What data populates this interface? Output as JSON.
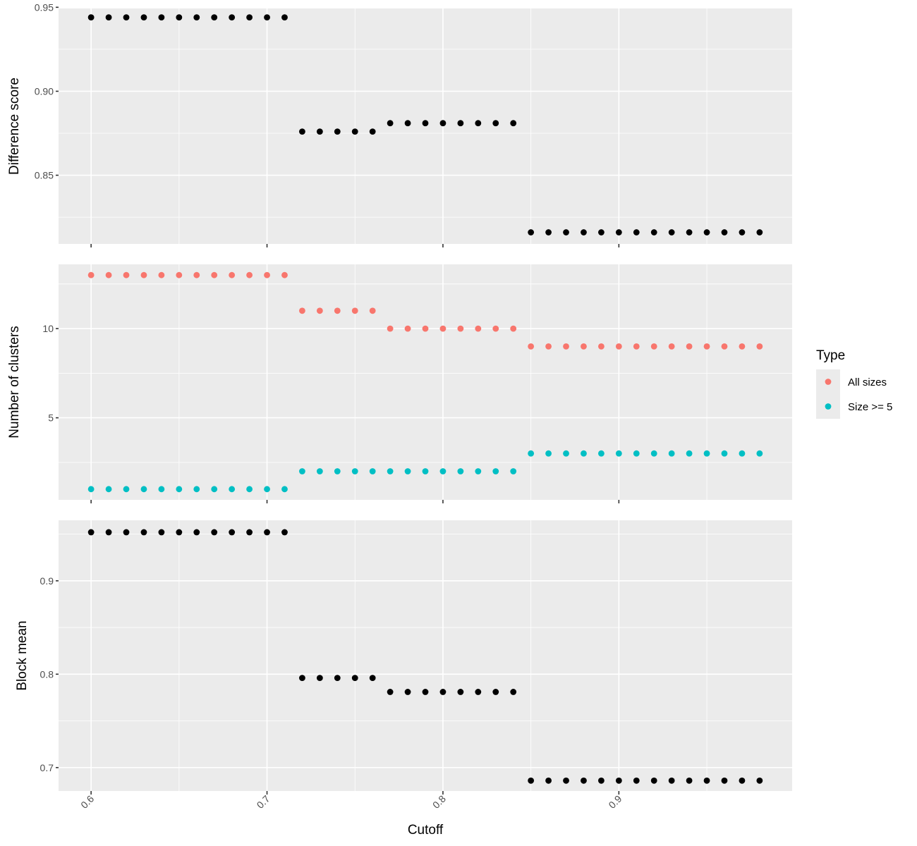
{
  "chart_data": {
    "type": "scatter",
    "xlabel": "Cutoff",
    "x_ticks": [
      0.6,
      0.7,
      0.8,
      0.9
    ],
    "x_tick_labels": [
      "0.6",
      "0.7",
      "0.8",
      "0.9"
    ],
    "xlim": [
      0.5815,
      0.9985
    ],
    "grid": true,
    "legend_position": "right",
    "legend": {
      "title": "Type",
      "entries": [
        {
          "label": "All sizes",
          "color": "#F8766D"
        },
        {
          "label": "Size >= 5",
          "color": "#00BFC4"
        }
      ]
    },
    "panels": [
      {
        "ylabel": "Difference score",
        "ylim": [
          0.8091,
          0.9493
        ],
        "y_ticks": [
          0.85,
          0.9,
          0.95
        ],
        "y_tick_labels": [
          "0.85",
          "0.90",
          "0.95"
        ],
        "series": [
          {
            "color": "#000000",
            "x": [
              0.6,
              0.61,
              0.62,
              0.63,
              0.64,
              0.65,
              0.66,
              0.67,
              0.68,
              0.69,
              0.7,
              0.71,
              0.72,
              0.73,
              0.74,
              0.75,
              0.76,
              0.77,
              0.78,
              0.79,
              0.8,
              0.81,
              0.82,
              0.83,
              0.84,
              0.85,
              0.86,
              0.87,
              0.88,
              0.89,
              0.9,
              0.91,
              0.92,
              0.93,
              0.94,
              0.95,
              0.96,
              0.97,
              0.98
            ],
            "y": [
              0.944,
              0.944,
              0.944,
              0.944,
              0.944,
              0.944,
              0.944,
              0.944,
              0.944,
              0.944,
              0.944,
              0.944,
              0.876,
              0.876,
              0.876,
              0.876,
              0.876,
              0.881,
              0.881,
              0.881,
              0.881,
              0.881,
              0.881,
              0.881,
              0.881,
              0.816,
              0.816,
              0.816,
              0.816,
              0.816,
              0.816,
              0.816,
              0.816,
              0.816,
              0.816,
              0.816,
              0.816,
              0.816,
              0.816
            ]
          }
        ]
      },
      {
        "ylabel": "Number of clusters",
        "ylim": [
          0.4,
          13.6
        ],
        "y_ticks": [
          5,
          10
        ],
        "y_tick_labels": [
          "5",
          "10"
        ],
        "series": [
          {
            "name": "All sizes",
            "color": "#F8766D",
            "x": [
              0.6,
              0.61,
              0.62,
              0.63,
              0.64,
              0.65,
              0.66,
              0.67,
              0.68,
              0.69,
              0.7,
              0.71,
              0.72,
              0.73,
              0.74,
              0.75,
              0.76,
              0.77,
              0.78,
              0.79,
              0.8,
              0.81,
              0.82,
              0.83,
              0.84,
              0.85,
              0.86,
              0.87,
              0.88,
              0.89,
              0.9,
              0.91,
              0.92,
              0.93,
              0.94,
              0.95,
              0.96,
              0.97,
              0.98
            ],
            "y": [
              13,
              13,
              13,
              13,
              13,
              13,
              13,
              13,
              13,
              13,
              13,
              13,
              11,
              11,
              11,
              11,
              11,
              10,
              10,
              10,
              10,
              10,
              10,
              10,
              10,
              9,
              9,
              9,
              9,
              9,
              9,
              9,
              9,
              9,
              9,
              9,
              9,
              9,
              9
            ]
          },
          {
            "name": "Size >= 5",
            "color": "#00BFC4",
            "x": [
              0.6,
              0.61,
              0.62,
              0.63,
              0.64,
              0.65,
              0.66,
              0.67,
              0.68,
              0.69,
              0.7,
              0.71,
              0.72,
              0.73,
              0.74,
              0.75,
              0.76,
              0.77,
              0.78,
              0.79,
              0.8,
              0.81,
              0.82,
              0.83,
              0.84,
              0.85,
              0.86,
              0.87,
              0.88,
              0.89,
              0.9,
              0.91,
              0.92,
              0.93,
              0.94,
              0.95,
              0.96,
              0.97,
              0.98
            ],
            "y": [
              1,
              1,
              1,
              1,
              1,
              1,
              1,
              1,
              1,
              1,
              1,
              1,
              2,
              2,
              2,
              2,
              2,
              2,
              2,
              2,
              2,
              2,
              2,
              2,
              2,
              3,
              3,
              3,
              3,
              3,
              3,
              3,
              3,
              3,
              3,
              3,
              3,
              3,
              3
            ]
          }
        ]
      },
      {
        "ylabel": "Block mean",
        "ylim": [
          0.6749,
          0.9648
        ],
        "y_ticks": [
          0.7,
          0.8,
          0.9
        ],
        "y_tick_labels": [
          "0.7",
          "0.8",
          "0.9"
        ],
        "series": [
          {
            "color": "#000000",
            "x": [
              0.6,
              0.61,
              0.62,
              0.63,
              0.64,
              0.65,
              0.66,
              0.67,
              0.68,
              0.69,
              0.7,
              0.71,
              0.72,
              0.73,
              0.74,
              0.75,
              0.76,
              0.77,
              0.78,
              0.79,
              0.8,
              0.81,
              0.82,
              0.83,
              0.84,
              0.85,
              0.86,
              0.87,
              0.88,
              0.89,
              0.9,
              0.91,
              0.92,
              0.93,
              0.94,
              0.95,
              0.96,
              0.97,
              0.98
            ],
            "y": [
              0.952,
              0.952,
              0.952,
              0.952,
              0.952,
              0.952,
              0.952,
              0.952,
              0.952,
              0.952,
              0.952,
              0.952,
              0.796,
              0.796,
              0.796,
              0.796,
              0.796,
              0.781,
              0.781,
              0.781,
              0.781,
              0.781,
              0.781,
              0.781,
              0.781,
              0.686,
              0.686,
              0.686,
              0.686,
              0.686,
              0.686,
              0.686,
              0.686,
              0.686,
              0.686,
              0.686,
              0.686,
              0.686,
              0.686
            ]
          }
        ]
      }
    ]
  }
}
